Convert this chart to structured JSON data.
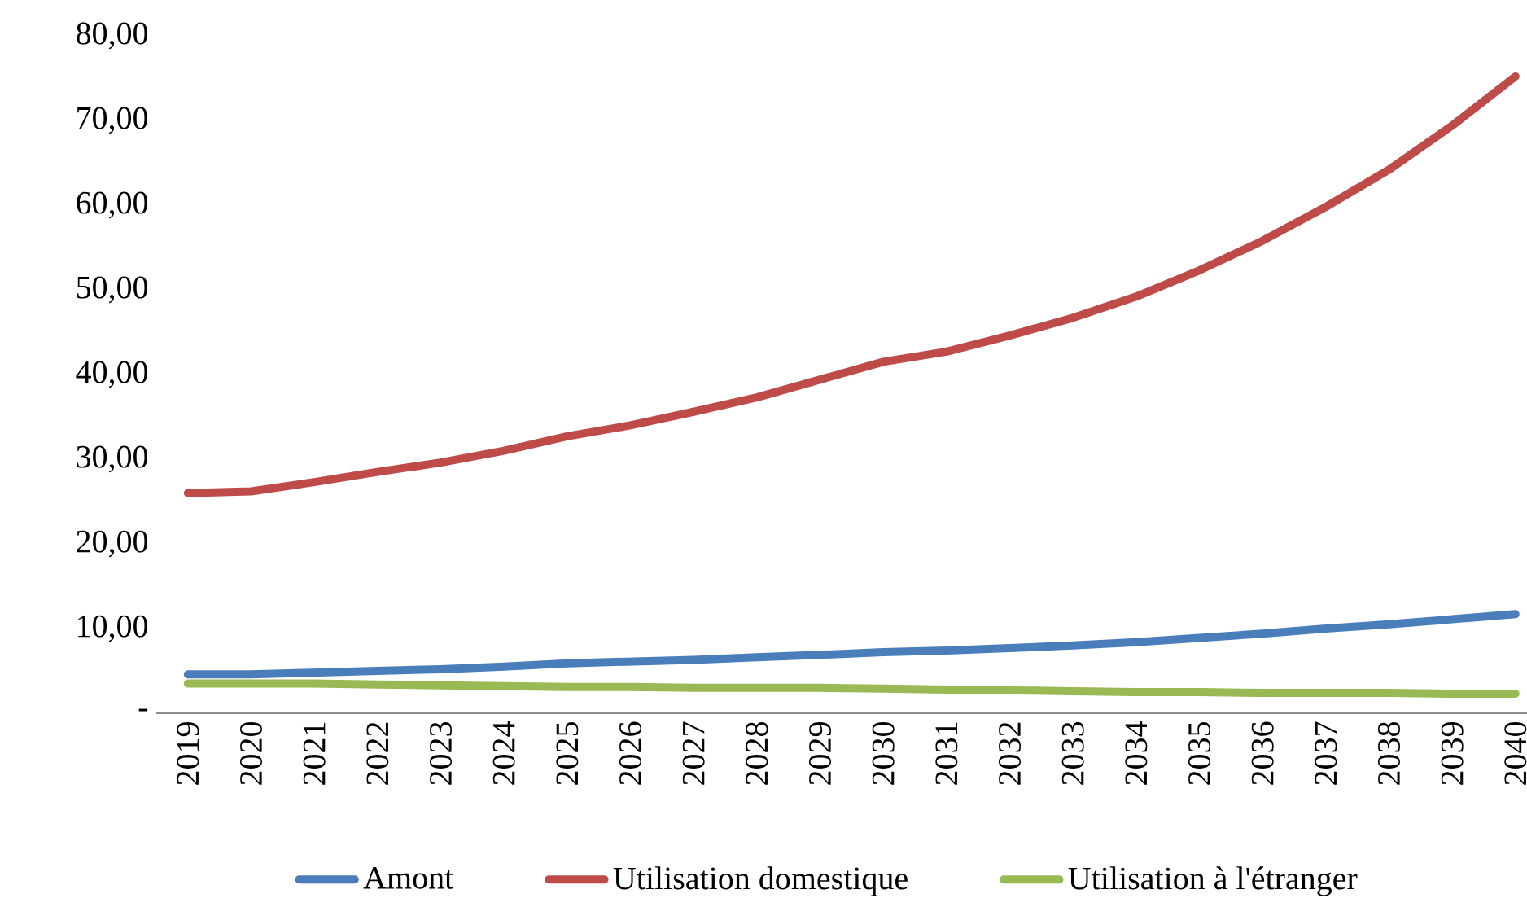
{
  "chart_data": {
    "type": "line",
    "categories": [
      "2019",
      "2020",
      "2021",
      "2022",
      "2023",
      "2024",
      "2025",
      "2026",
      "2027",
      "2028",
      "2029",
      "2030",
      "2031",
      "2032",
      "2033",
      "2034",
      "2035",
      "2036",
      "2037",
      "2038",
      "2039",
      "2040"
    ],
    "series": [
      {
        "name": "Amont",
        "color": "#4a7ebb",
        "values": [
          4.6,
          4.6,
          4.8,
          5.0,
          5.2,
          5.5,
          5.9,
          6.1,
          6.3,
          6.6,
          6.9,
          7.2,
          7.4,
          7.7,
          8.0,
          8.4,
          8.9,
          9.4,
          10.0,
          10.5,
          11.1,
          11.7
        ]
      },
      {
        "name": "Utilisation domestique",
        "color": "#be4b48",
        "values": [
          26.0,
          26.2,
          27.3,
          28.5,
          29.6,
          31.0,
          32.7,
          34.0,
          35.6,
          37.3,
          39.4,
          41.5,
          42.7,
          44.6,
          46.7,
          49.2,
          52.3,
          55.8,
          59.8,
          64.2,
          69.4,
          75.2
        ]
      },
      {
        "name": "Utilisation à l'étranger",
        "color": "#98b954",
        "values": [
          3.5,
          3.5,
          3.5,
          3.4,
          3.3,
          3.2,
          3.1,
          3.1,
          3.0,
          3.0,
          3.0,
          2.9,
          2.8,
          2.7,
          2.6,
          2.5,
          2.5,
          2.4,
          2.4,
          2.4,
          2.3,
          2.3
        ]
      }
    ],
    "ylim": [
      0,
      80
    ],
    "yticks": [
      {
        "value": 0,
        "label": "-"
      },
      {
        "value": 10,
        "label": "10,00"
      },
      {
        "value": 20,
        "label": "20,00"
      },
      {
        "value": 30,
        "label": "30,00"
      },
      {
        "value": 40,
        "label": "40,00"
      },
      {
        "value": 50,
        "label": "50,00"
      },
      {
        "value": 60,
        "label": "60,00"
      },
      {
        "value": 70,
        "label": "70,00"
      },
      {
        "value": 80,
        "label": "80,00"
      }
    ],
    "grid": false,
    "legend": "bottom",
    "marker": "none",
    "line_style": "solid"
  }
}
